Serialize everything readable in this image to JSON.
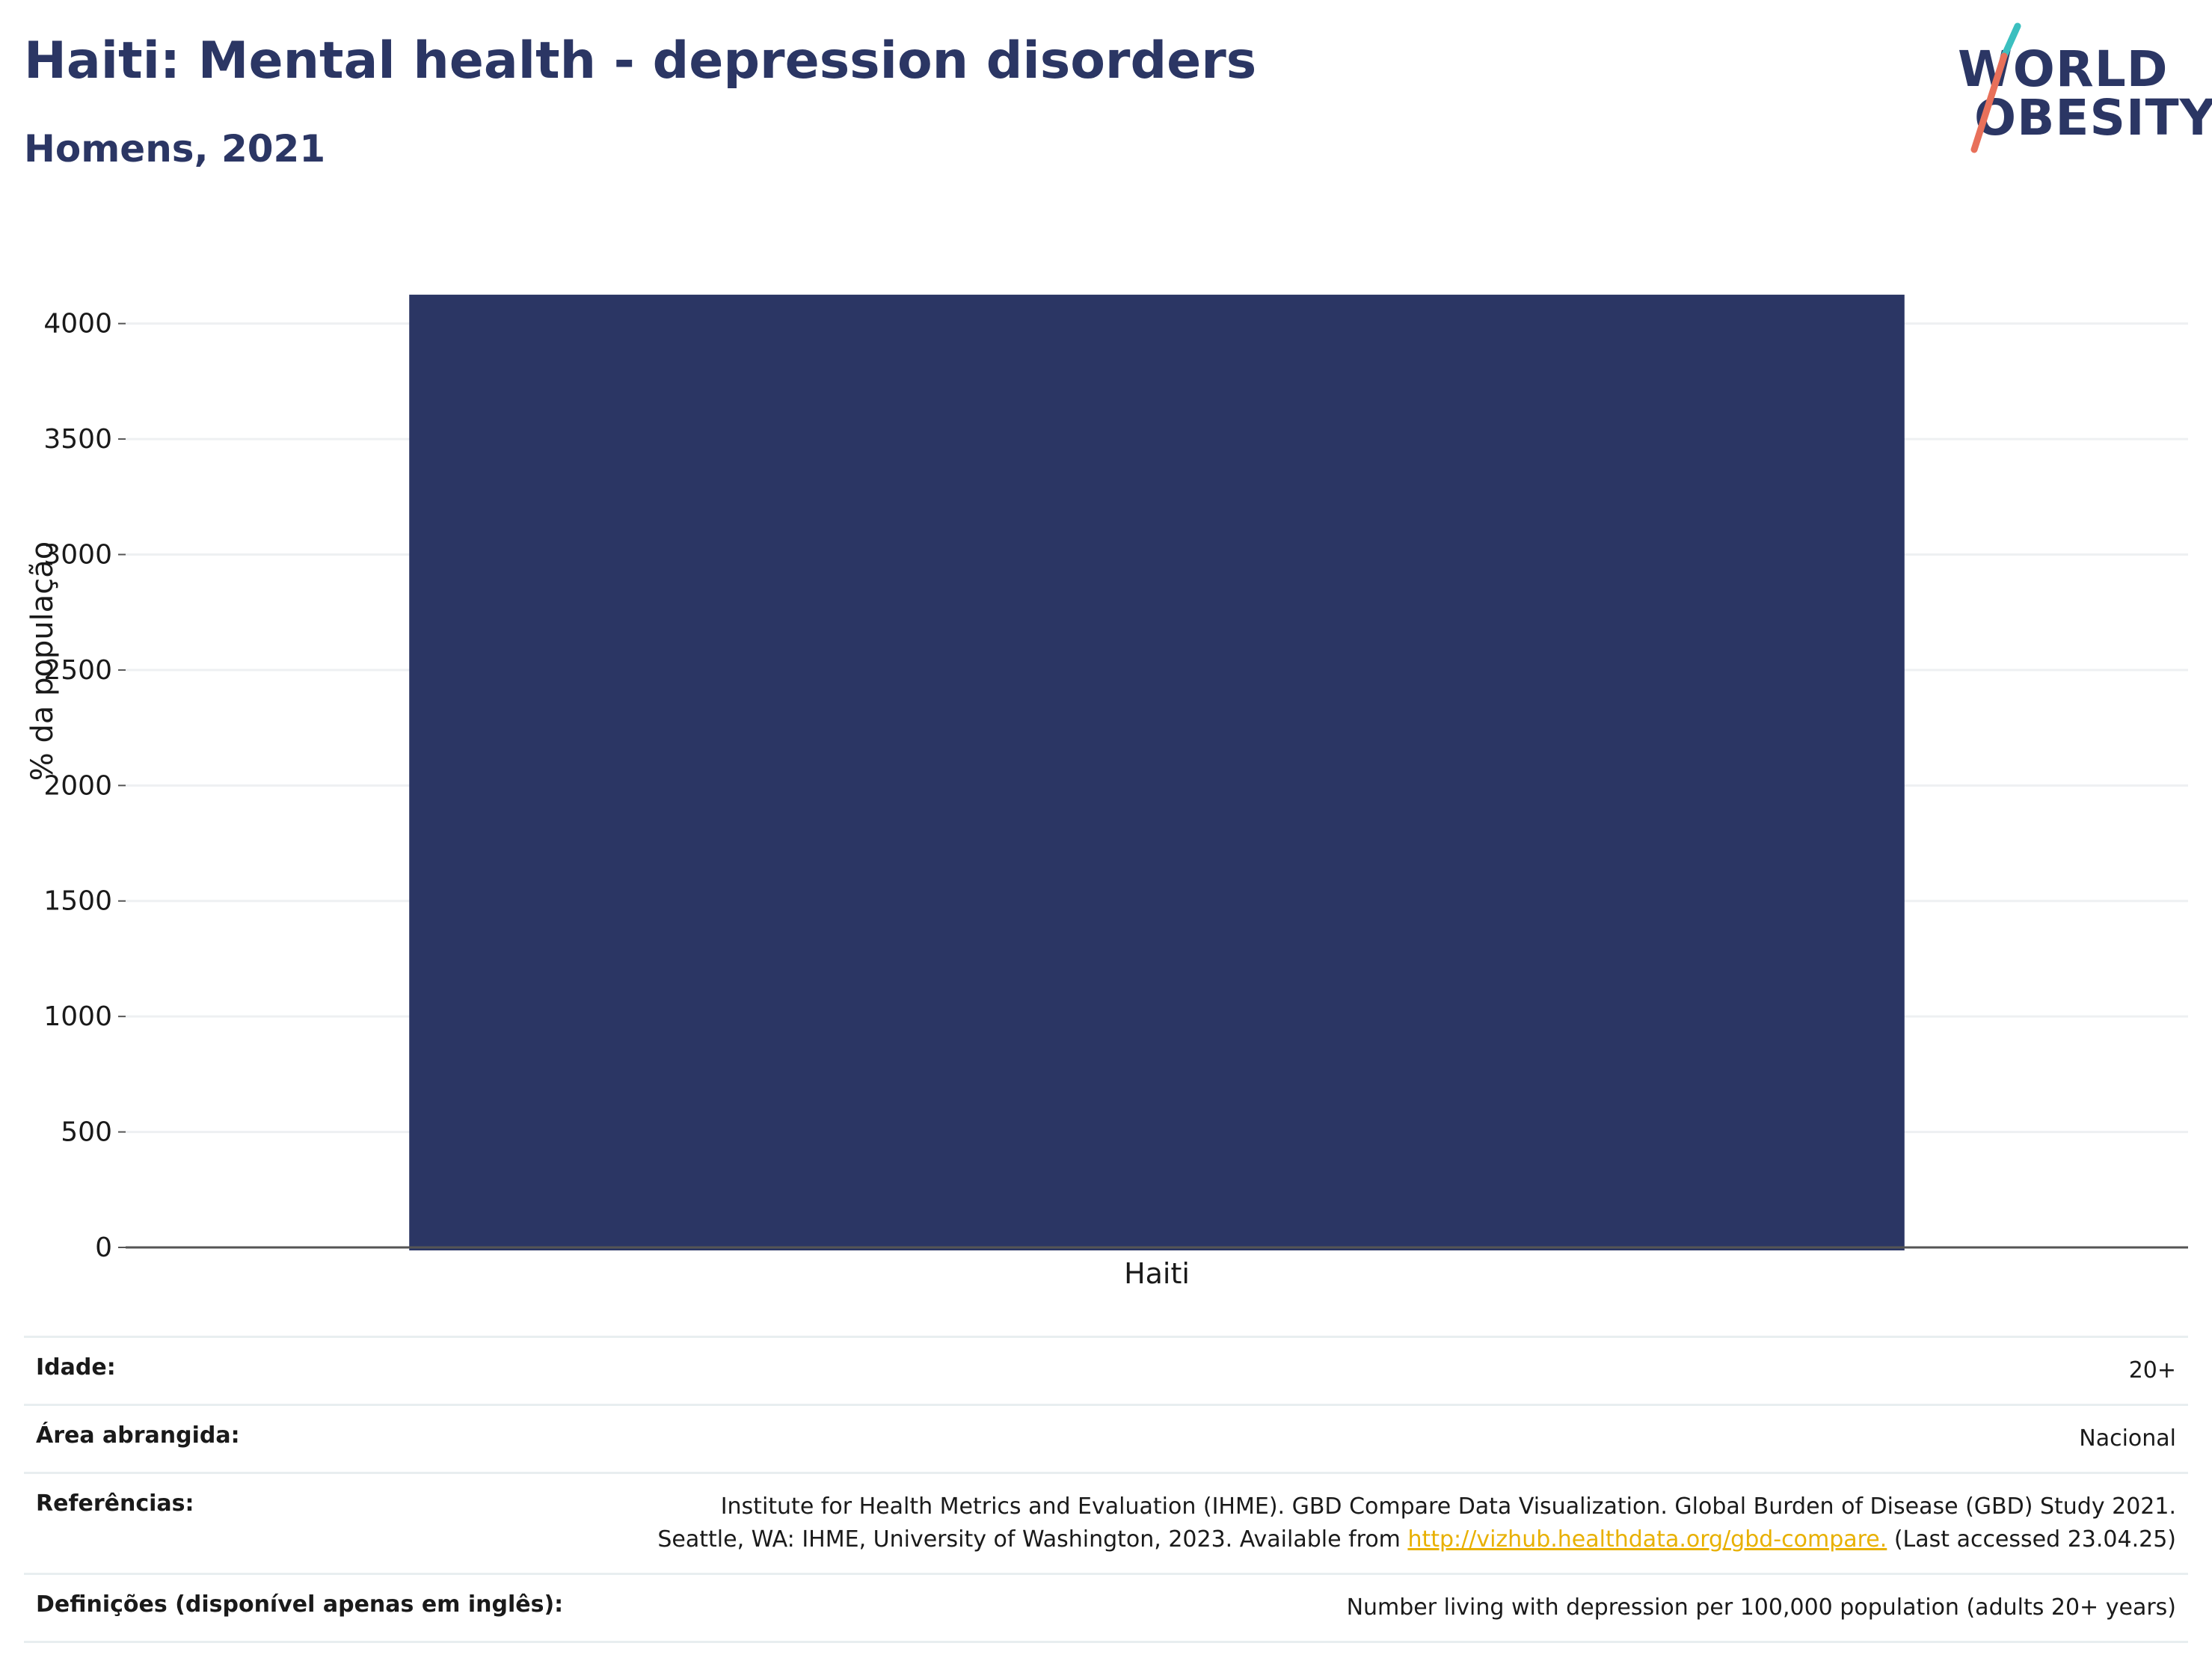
{
  "title": "Haiti: Mental health - depression disorders",
  "subtitle": "Homens, 2021",
  "logo": {
    "line1": "WORLD",
    "line2": "OBESITY"
  },
  "colors": {
    "bar": "#2b3664",
    "text": "#2b3664",
    "grid": "#eef0f2",
    "axis": "#555555",
    "link": "#e8b000",
    "logo_teal": "#3bbfbf",
    "logo_coral": "#e8705a"
  },
  "chart_data": {
    "type": "bar",
    "categories": [
      "Haiti"
    ],
    "values": [
      4125
    ],
    "ylabel": "% da população",
    "xlabel": "",
    "ylim": [
      0,
      4300
    ],
    "yticks": [
      0,
      500,
      1000,
      1500,
      2000,
      2500,
      3000,
      3500,
      4000
    ],
    "grid": true
  },
  "meta": {
    "age_label": "Idade:",
    "age_value": "20+",
    "area_label": "Área abrangida:",
    "area_value": "Nacional",
    "refs_label": "Referências:",
    "refs_line1": "Institute for Health Metrics and Evaluation (IHME). GBD Compare Data Visualization. Global Burden of Disease (GBD) Study 2021.",
    "refs_line2_pre": "Seattle, WA: IHME, University of Washington, 2023. Available from ",
    "refs_link": "http://vizhub.healthdata.org/gbd-compare.",
    "refs_line2_post": " (Last accessed 23.04.25)",
    "defs_label": "Definições (disponível apenas em inglês):",
    "defs_value": "Number living with depression per 100,000 population (adults 20+ years)"
  }
}
